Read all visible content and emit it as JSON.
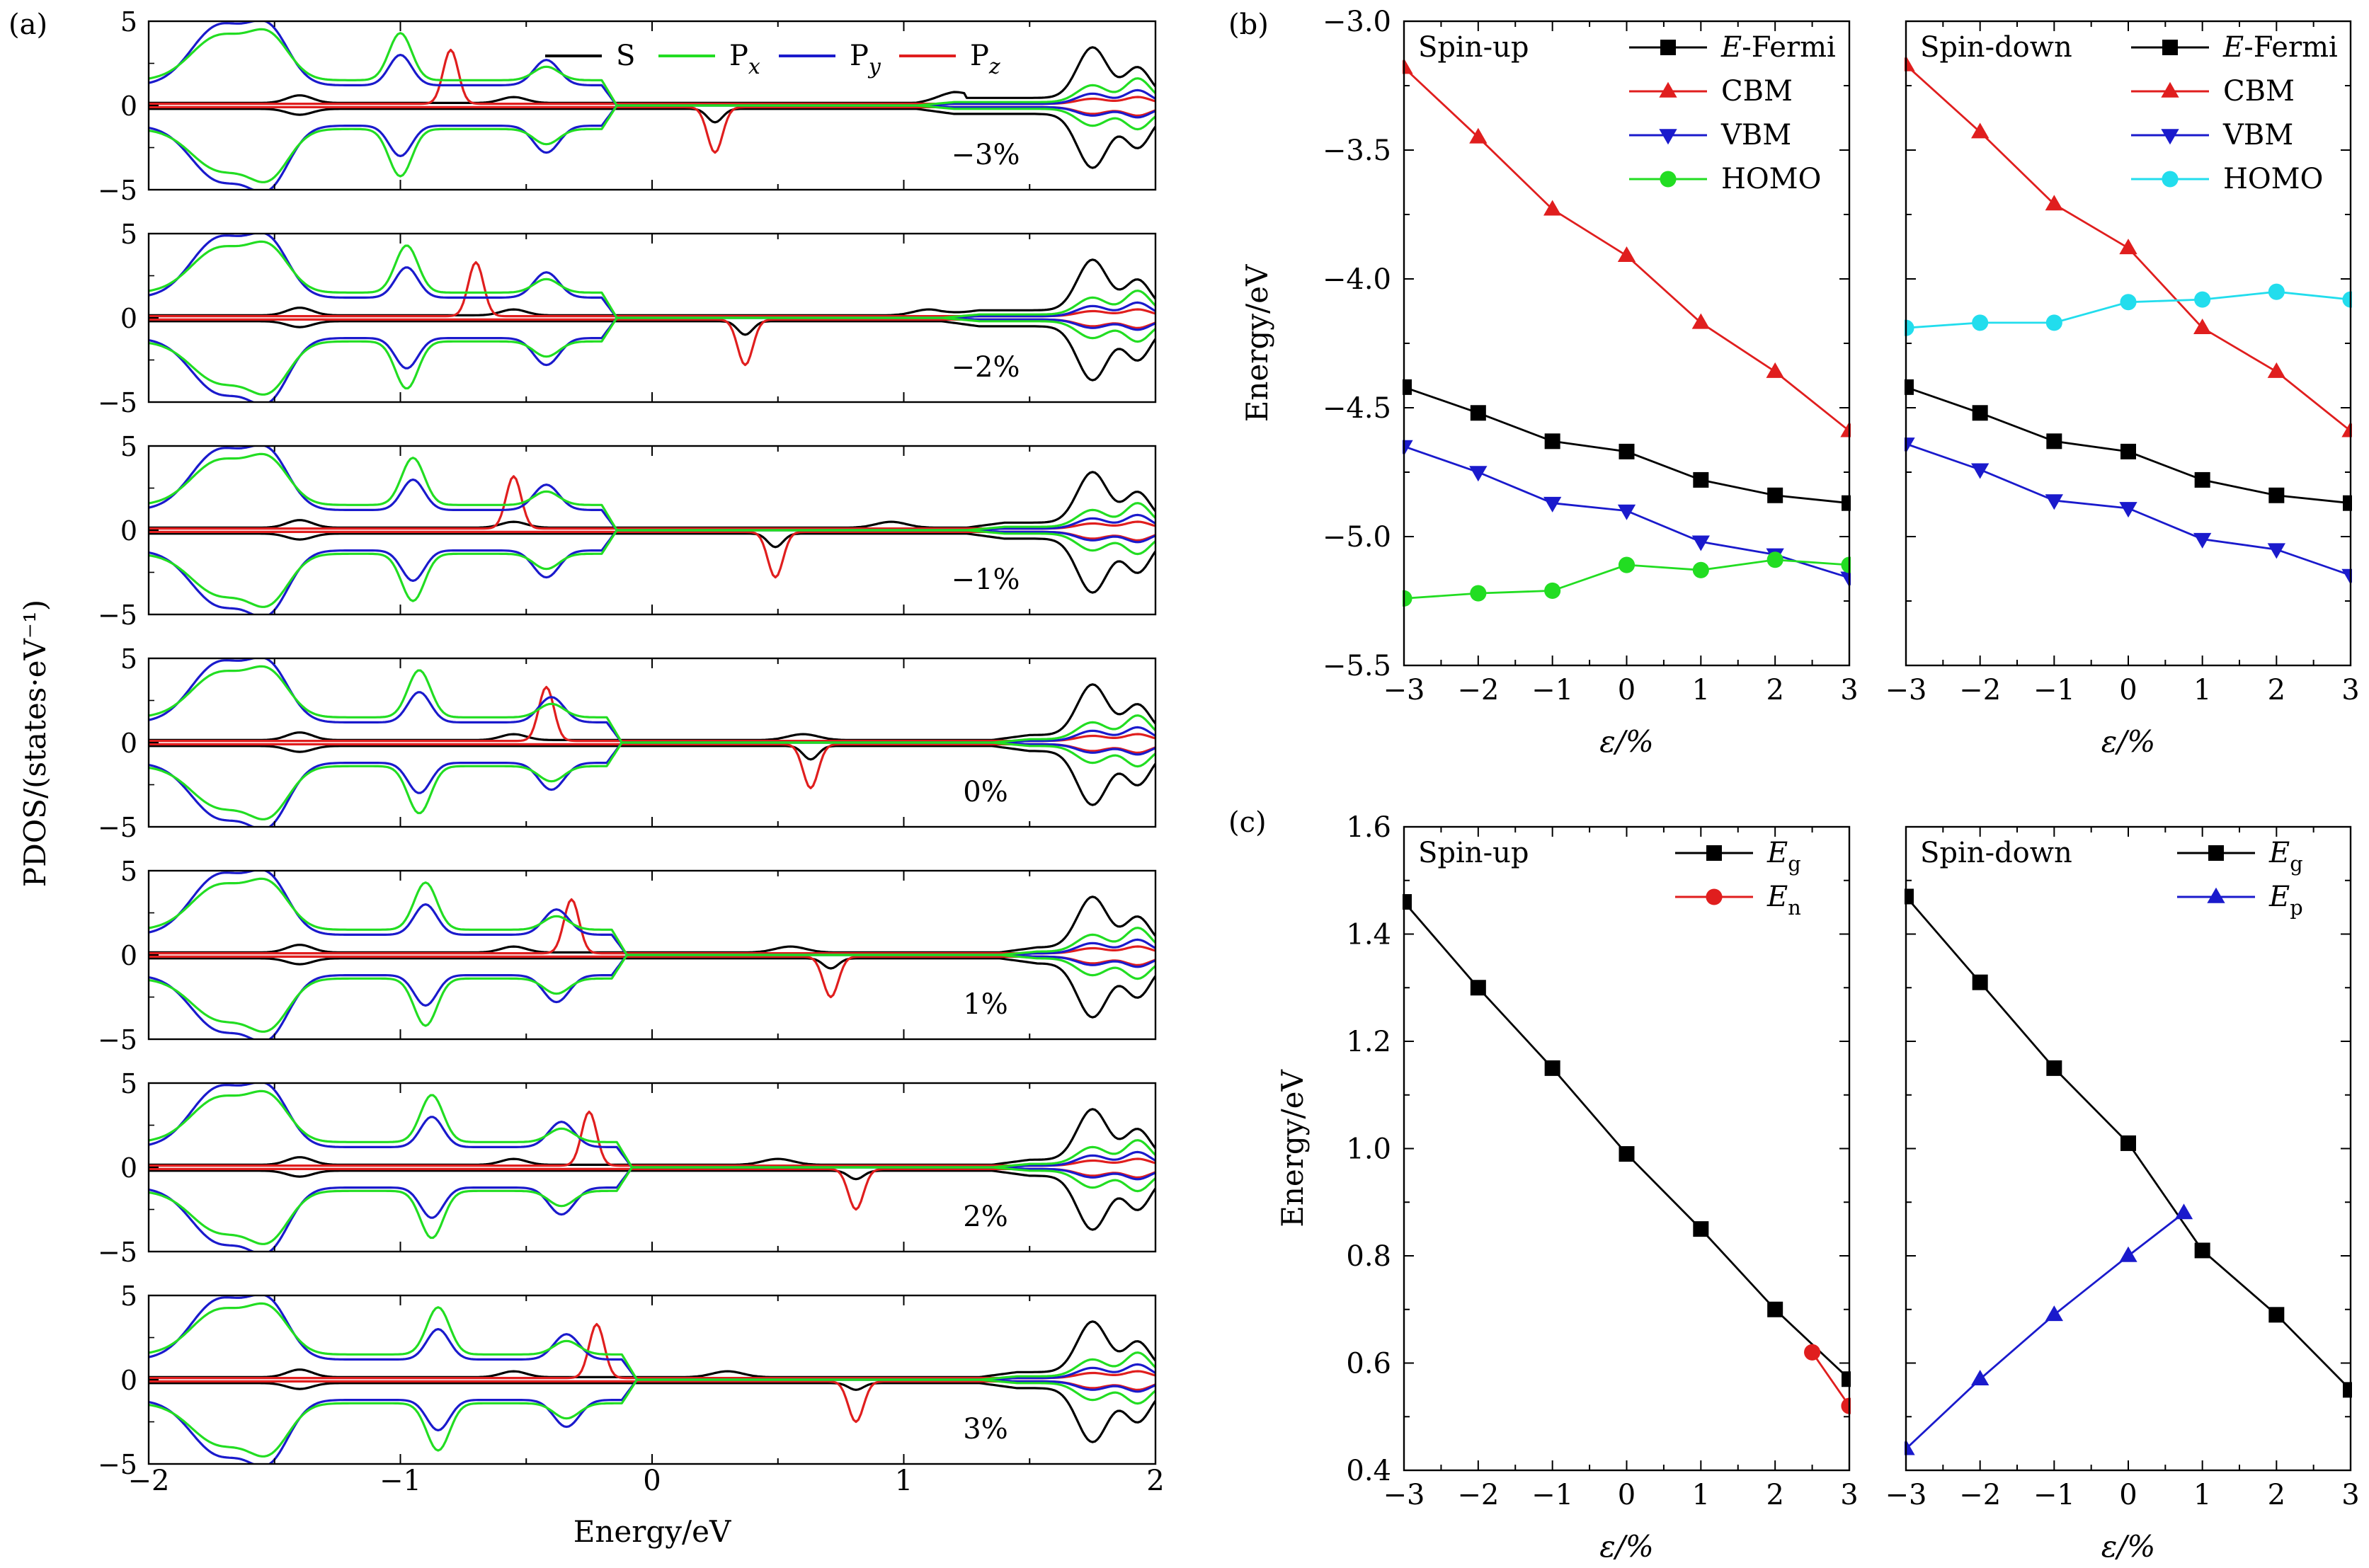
{
  "panel_labels": {
    "a": "(a)",
    "b": "(b)",
    "c": "(c)"
  },
  "chart_data": [
    {
      "id": "a",
      "type": "line",
      "subplots": [
        "−3%",
        "−2%",
        "−1%",
        "0%",
        "1%",
        "2%",
        "3%"
      ],
      "ylabel": "PDOS/(states·eV⁻¹)",
      "xlabel": "Energy/eV",
      "xlim": [
        -2,
        2
      ],
      "ylim": [
        -5,
        5
      ],
      "xticks": [
        "−2",
        "−1",
        "0",
        "1",
        "2"
      ],
      "yticks": [
        "5",
        "0",
        "−5"
      ],
      "legend": "top-right",
      "series": [
        {
          "name": "S",
          "color": "#000000"
        },
        {
          "name": "Px",
          "color": "#22dd22"
        },
        {
          "name": "Py",
          "color": "#1a1acc"
        },
        {
          "name": "Pz",
          "color": "#e01e1e"
        }
      ],
      "gap": {
        "vbm": [
          -0.2,
          -0.2,
          -0.2,
          -0.18,
          -0.16,
          -0.14,
          -0.12
        ],
        "cbm": [
          1.25,
          1.35,
          1.45,
          1.55,
          1.58,
          1.55,
          1.5
        ]
      },
      "pz_up": [
        [
          -0.8,
          3.2
        ],
        [
          -0.7,
          3.2
        ],
        [
          -0.55,
          3.1
        ],
        [
          -0.42,
          3.2
        ],
        [
          -0.32,
          3.2
        ],
        [
          -0.25,
          3.2
        ],
        [
          -0.22,
          3.2
        ]
      ],
      "pz_down": [
        [
          0.25,
          -2.7
        ],
        [
          0.37,
          -2.7
        ],
        [
          0.49,
          -2.7
        ],
        [
          0.63,
          -2.6
        ],
        [
          0.71,
          -2.4
        ],
        [
          0.81,
          -2.4
        ],
        [
          0.81,
          -2.4
        ]
      ],
      "s_down": [
        [
          0.25,
          -0.8
        ],
        [
          0.37,
          -0.8
        ],
        [
          0.49,
          -0.8
        ],
        [
          0.63,
          -0.8
        ],
        [
          0.71,
          -0.6
        ],
        [
          0.81,
          -0.5
        ],
        [
          0.81,
          -0.4
        ]
      ],
      "s_up_conduction": [
        [
          1.2,
          0.4
        ],
        [
          1.1,
          0.4
        ],
        [
          0.95,
          0.4
        ],
        [
          0.6,
          0.4
        ],
        [
          0.55,
          0.4
        ],
        [
          0.5,
          0.4
        ],
        [
          0.3,
          0.4
        ]
      ]
    },
    {
      "id": "b",
      "type": "line",
      "xlabel": "ε/%",
      "ylabel": "Energy/eV",
      "x": [
        -3,
        -2,
        -1,
        0,
        1,
        2,
        3
      ],
      "xlim": [
        -3,
        3
      ],
      "ylim": [
        -5.5,
        -3.0
      ],
      "xticks": [
        "−3",
        "−2",
        "−1",
        "0",
        "1",
        "2",
        "3"
      ],
      "yticks": [
        "−3.0",
        "−3.5",
        "−4.0",
        "−4.5",
        "−5.0",
        "−5.5"
      ],
      "legend": "top-right",
      "panels": [
        {
          "title": "Spin-up",
          "series": [
            {
              "name": "E-Fermi",
              "marker": "square",
              "color": "#000000",
              "values": [
                -4.42,
                -4.52,
                -4.63,
                -4.67,
                -4.78,
                -4.84,
                -4.87
              ]
            },
            {
              "name": "CBM",
              "marker": "triangle-up",
              "color": "#e01e1e",
              "values": [
                -3.18,
                -3.45,
                -3.73,
                -3.91,
                -4.17,
                -4.36,
                -4.59
              ]
            },
            {
              "name": "VBM",
              "marker": "triangle-down",
              "color": "#1a1acc",
              "values": [
                -4.65,
                -4.75,
                -4.87,
                -4.9,
                -5.02,
                -5.07,
                -5.16
              ]
            },
            {
              "name": "HOMO",
              "marker": "circle",
              "color": "#22dd22",
              "values": [
                -5.24,
                -5.22,
                -5.21,
                -5.11,
                -5.13,
                -5.09,
                -5.11
              ]
            }
          ]
        },
        {
          "title": "Spin-down",
          "series": [
            {
              "name": "E-Fermi",
              "marker": "square",
              "color": "#000000",
              "values": [
                -4.42,
                -4.52,
                -4.63,
                -4.67,
                -4.78,
                -4.84,
                -4.87
              ]
            },
            {
              "name": "CBM",
              "marker": "triangle-up",
              "color": "#e01e1e",
              "values": [
                -3.17,
                -3.43,
                -3.71,
                -3.88,
                -4.19,
                -4.36,
                -4.59
              ]
            },
            {
              "name": "VBM",
              "marker": "triangle-down",
              "color": "#1a1acc",
              "values": [
                -4.64,
                -4.74,
                -4.86,
                -4.89,
                -5.01,
                -5.05,
                -5.15
              ]
            },
            {
              "name": "HOMO",
              "marker": "circle",
              "color": "#22dded",
              "values": [
                -4.19,
                -4.17,
                -4.17,
                -4.09,
                -4.08,
                -4.05,
                -4.08
              ]
            }
          ]
        }
      ]
    },
    {
      "id": "c",
      "type": "line",
      "xlabel": "ε/%",
      "ylabel": "Energy/eV",
      "xlim": [
        -3,
        3
      ],
      "ylim": [
        0.4,
        1.6
      ],
      "xticks": [
        "−3",
        "−2",
        "−1",
        "0",
        "1",
        "2",
        "3"
      ],
      "yticks": [
        "1.6",
        "1.4",
        "1.2",
        "1.0",
        "0.8",
        "0.6",
        "0.4"
      ],
      "legend": "top-right",
      "panels": [
        {
          "title": "Spin-up",
          "series": [
            {
              "name": "Eg",
              "sub": "g",
              "marker": "square",
              "color": "#000000",
              "x": [
                -3,
                -2,
                -1,
                0,
                1,
                2,
                3
              ],
              "values": [
                1.46,
                1.3,
                1.15,
                0.99,
                0.85,
                0.7,
                0.57
              ]
            },
            {
              "name": "En",
              "sub": "n",
              "marker": "circle",
              "color": "#e01e1e",
              "x": [
                2.5,
                3
              ],
              "values": [
                0.62,
                0.52
              ]
            }
          ]
        },
        {
          "title": "Spin-down",
          "series": [
            {
              "name": "Eg",
              "sub": "g",
              "marker": "square",
              "color": "#000000",
              "x": [
                -3,
                -2,
                -1,
                0,
                1,
                2,
                3
              ],
              "values": [
                1.47,
                1.31,
                1.15,
                1.01,
                0.81,
                0.69,
                0.55
              ]
            },
            {
              "name": "Ep",
              "sub": "p",
              "marker": "triangle-up",
              "color": "#1a1acc",
              "x": [
                -3,
                -2,
                -1,
                0,
                0.75
              ],
              "values": [
                0.44,
                0.57,
                0.69,
                0.8,
                0.88
              ]
            }
          ]
        }
      ]
    }
  ]
}
